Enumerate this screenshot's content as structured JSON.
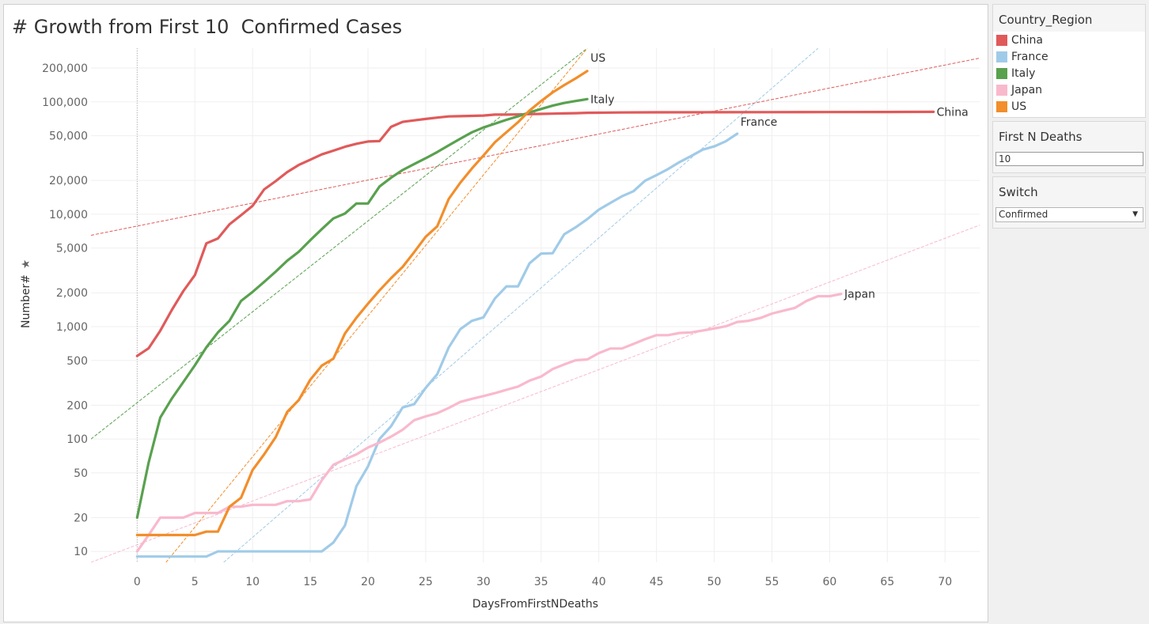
{
  "title": "# Growth from First 10  Confirmed Cases",
  "legend": {
    "title": "Country_Region",
    "items": [
      {
        "label": "China",
        "color": "#e05a5a"
      },
      {
        "label": "France",
        "color": "#a0cbe8"
      },
      {
        "label": "Italy",
        "color": "#59a14f"
      },
      {
        "label": "Japan",
        "color": "#f9b9cd"
      },
      {
        "label": "US",
        "color": "#f28e2b"
      }
    ]
  },
  "parameter": {
    "title": "First N Deaths",
    "value": "10"
  },
  "switch": {
    "title": "Switch",
    "value": "Confirmed"
  },
  "chart_data": {
    "type": "line",
    "title": "# Growth from First 10  Confirmed Cases",
    "xlabel": "DaysFromFirstNDeaths",
    "ylabel": "Number#",
    "y_scale": "log",
    "xlim": [
      -4,
      73
    ],
    "ylim": [
      8,
      300000
    ],
    "x_ticks": [
      0,
      5,
      10,
      15,
      20,
      25,
      30,
      35,
      40,
      45,
      50,
      55,
      60,
      65,
      70
    ],
    "y_ticks": [
      10,
      20,
      50,
      100,
      200,
      500,
      1000,
      2000,
      5000,
      10000,
      20000,
      50000,
      100000,
      200000
    ],
    "y_tick_labels": [
      "10",
      "20",
      "50",
      "100",
      "200",
      "500",
      "1,000",
      "2,000",
      "5,000",
      "10,000",
      "20,000",
      "50,000",
      "100,000",
      "200,000"
    ],
    "grid": true,
    "series": [
      {
        "name": "China",
        "color": "#e05a5a",
        "x": [
          0,
          1,
          2,
          3,
          4,
          5,
          6,
          7,
          8,
          9,
          10,
          11,
          12,
          13,
          14,
          15,
          16,
          17,
          18,
          19,
          20,
          21,
          22,
          23,
          24,
          25,
          26,
          27,
          28,
          29,
          30,
          31,
          32,
          33,
          34,
          35,
          36,
          37,
          38,
          39,
          40,
          42,
          45,
          50,
          55,
          60,
          65,
          69
        ],
        "values": [
          548,
          643,
          920,
          1406,
          2075,
          2877,
          5509,
          6087,
          8141,
          9802,
          11891,
          16630,
          19716,
          23707,
          27440,
          30587,
          34110,
          36814,
          39829,
          42354,
          44386,
          44759,
          59895,
          66358,
          68413,
          70513,
          72434,
          74211,
          74619,
          75077,
          75550,
          77001,
          77022,
          77241,
          77754,
          78166,
          78600,
          78928,
          79356,
          79932,
          80136,
          80500,
          80800,
          80900,
          81000,
          81100,
          81300,
          81500
        ]
      },
      {
        "name": "France",
        "color": "#a0cbe8",
        "x": [
          0,
          1,
          2,
          3,
          4,
          5,
          6,
          7,
          8,
          9,
          10,
          11,
          12,
          13,
          14,
          15,
          16,
          17,
          18,
          19,
          20,
          21,
          22,
          23,
          24,
          25,
          26,
          27,
          28,
          29,
          30,
          31,
          32,
          33,
          34,
          35,
          36,
          37,
          38,
          39,
          40,
          41,
          42,
          43,
          44,
          45,
          46,
          47,
          48,
          49,
          50,
          51,
          52
        ],
        "values": [
          9,
          9,
          9,
          9,
          9,
          9,
          9,
          10,
          10,
          10,
          10,
          10,
          10,
          10,
          10,
          10,
          10,
          12,
          17,
          38,
          57,
          100,
          130,
          191,
          204,
          285,
          377,
          653,
          949,
          1126,
          1209,
          1784,
          2281,
          2281,
          3661,
          4469,
          4499,
          6633,
          7652,
          9043,
          10995,
          12612,
          14459,
          16018,
          19856,
          22302,
          25233,
          29155,
          32964,
          37575,
          40174,
          44550,
          52128
        ]
      },
      {
        "name": "Italy",
        "color": "#59a14f",
        "x": [
          0,
          1,
          2,
          3,
          4,
          5,
          6,
          7,
          8,
          9,
          10,
          11,
          12,
          13,
          14,
          15,
          16,
          17,
          18,
          19,
          20,
          21,
          22,
          23,
          24,
          25,
          26,
          27,
          28,
          29,
          30,
          31,
          32,
          33,
          34,
          35,
          36,
          37,
          38,
          39
        ],
        "values": [
          20,
          62,
          155,
          229,
          322,
          453,
          655,
          888,
          1128,
          1694,
          2036,
          2502,
          3089,
          3858,
          4636,
          5883,
          7375,
          9172,
          10149,
          12462,
          12462,
          17660,
          21157,
          24747,
          27980,
          31506,
          35713,
          41035,
          47021,
          53578,
          59138,
          63927,
          69176,
          74386,
          80589,
          86498,
          92472,
          97689,
          101739,
          105792
        ]
      },
      {
        "name": "Japan",
        "color": "#f9b9cd",
        "x": [
          0,
          1,
          2,
          3,
          4,
          5,
          6,
          7,
          8,
          9,
          10,
          11,
          12,
          13,
          14,
          15,
          16,
          17,
          18,
          19,
          20,
          21,
          22,
          23,
          24,
          25,
          26,
          27,
          28,
          29,
          30,
          31,
          32,
          33,
          34,
          35,
          36,
          37,
          38,
          39,
          40,
          41,
          42,
          43,
          44,
          45,
          46,
          47,
          48,
          49,
          50,
          51,
          52,
          53,
          54,
          55,
          56,
          57,
          58,
          59,
          60,
          61
        ],
        "values": [
          10,
          14,
          20,
          20,
          20,
          22,
          22,
          22,
          25,
          25,
          26,
          26,
          26,
          28,
          28,
          29,
          43,
          59,
          66,
          73,
          84,
          93,
          105,
          121,
          147,
          159,
          170,
          189,
          214,
          228,
          241,
          256,
          274,
          293,
          331,
          360,
          420,
          461,
          502,
          511,
          581,
          639,
          639,
          701,
          773,
          839,
          839,
          878,
          889,
          924,
          963,
          1007,
          1101,
          1128,
          1193,
          1307,
          1387,
          1468,
          1693,
          1866,
          1866,
          1953
        ]
      },
      {
        "name": "US",
        "color": "#f28e2b",
        "x": [
          0,
          1,
          2,
          3,
          4,
          5,
          6,
          7,
          8,
          9,
          10,
          11,
          12,
          13,
          14,
          15,
          16,
          17,
          18,
          19,
          20,
          21,
          22,
          23,
          24,
          25,
          26,
          27,
          28,
          29,
          30,
          31,
          32,
          33,
          34,
          35,
          36,
          37,
          38,
          39
        ],
        "values": [
          14,
          14,
          14,
          14,
          14,
          14,
          15,
          15,
          25,
          30,
          53,
          73,
          104,
          174,
          222,
          337,
          451,
          519,
          869,
          1200,
          1600,
          2100,
          2700,
          3400,
          4600,
          6300,
          7800,
          13700,
          19100,
          25500,
          33300,
          43800,
          53700,
          65800,
          83800,
          101657,
          121478,
          140886,
          161807,
          188172
        ]
      }
    ],
    "trend_lines": [
      {
        "name": "China",
        "color": "#e05a5a",
        "x": [
          -4,
          73
        ],
        "values": [
          6500,
          245000
        ]
      },
      {
        "name": "France",
        "color": "#a0cbe8",
        "x": [
          7.5,
          59
        ],
        "values": [
          8,
          300000
        ]
      },
      {
        "name": "Italy",
        "color": "#59a14f",
        "x": [
          -4,
          39
        ],
        "values": [
          100,
          300000
        ]
      },
      {
        "name": "Japan",
        "color": "#f9b9cd",
        "x": [
          -4,
          73
        ],
        "values": [
          8,
          8000
        ]
      },
      {
        "name": "US",
        "color": "#f28e2b",
        "x": [
          2.5,
          39
        ],
        "values": [
          8,
          300000
        ]
      }
    ],
    "end_labels": [
      {
        "name": "China",
        "x": 69,
        "y": 81500
      },
      {
        "name": "France",
        "x": 52,
        "y": 52128
      },
      {
        "name": "Italy",
        "x": 39,
        "y": 105792
      },
      {
        "name": "Japan",
        "x": 61,
        "y": 1953
      },
      {
        "name": "US",
        "x": 39,
        "y": 188172
      }
    ]
  }
}
